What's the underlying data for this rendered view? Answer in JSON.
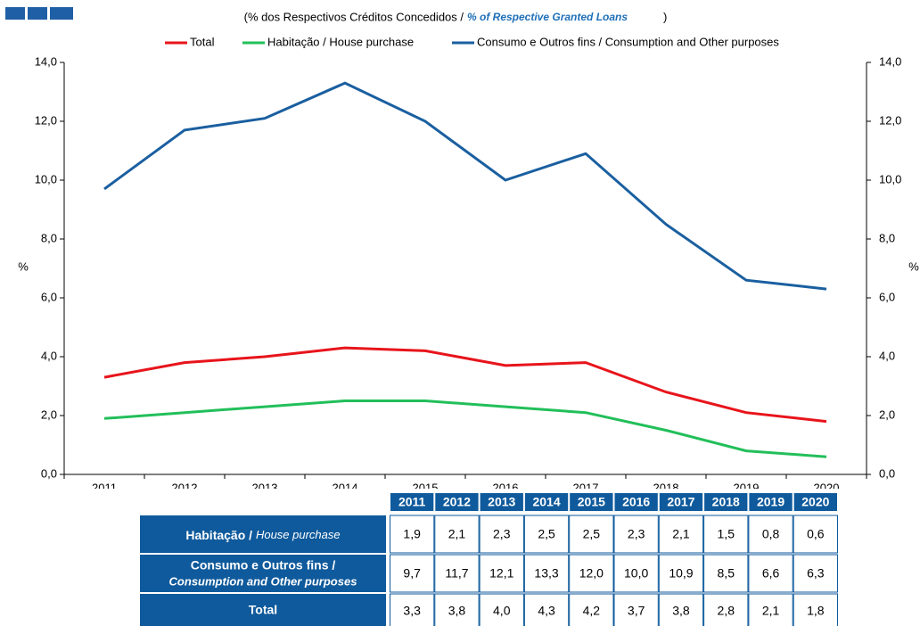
{
  "chart_data": {
    "type": "line",
    "subtitle": {
      "pt": "(% dos Respectivos Créditos Concedidos /",
      "en": "% of Respective Granted Loans",
      "close": ")"
    },
    "ylabel": "%",
    "categories": [
      "2011",
      "2012",
      "2013",
      "2014",
      "2015",
      "2016",
      "2017",
      "2018",
      "2019",
      "2020"
    ],
    "series": [
      {
        "name": "Total",
        "color": "#e8141b",
        "values": [
          3.3,
          3.8,
          4.0,
          4.3,
          4.2,
          3.7,
          3.8,
          2.8,
          2.1,
          1.8
        ],
        "value_labels": [
          "3,3",
          "3,8",
          "4,0",
          "4,3",
          "4,2",
          "3,7",
          "3,8",
          "2,8",
          "2,1",
          "1,8"
        ],
        "table_label": [
          "Total"
        ]
      },
      {
        "name": "Habitação / House purchase",
        "color": "#22bf5a",
        "values": [
          1.9,
          2.1,
          2.3,
          2.5,
          2.5,
          2.3,
          2.1,
          1.5,
          0.8,
          0.6
        ],
        "value_labels": [
          "1,9",
          "2,1",
          "2,3",
          "2,5",
          "2,5",
          "2,3",
          "2,1",
          "1,5",
          "0,8",
          "0,6"
        ],
        "table_label": [
          "Habitação /",
          "House purchase"
        ]
      },
      {
        "name": "Consumo e Outros fins / Consumption and Other purposes",
        "color": "#1a5fa0",
        "values": [
          9.7,
          11.7,
          12.1,
          13.3,
          12.0,
          10.0,
          10.9,
          8.5,
          6.6,
          6.3
        ],
        "value_labels": [
          "9,7",
          "11,7",
          "12,1",
          "13,3",
          "12,0",
          "10,0",
          "10,9",
          "8,5",
          "6,6",
          "6,3"
        ],
        "table_label": [
          "Consumo e Outros fins /",
          "Consumption and Other purposes"
        ]
      }
    ],
    "ylim": [
      0,
      14
    ],
    "yticks": [
      {
        "value": 0,
        "label": "0,0"
      },
      {
        "value": 2,
        "label": "2,0"
      },
      {
        "value": 4,
        "label": "4,0"
      },
      {
        "value": 6,
        "label": "6,0"
      },
      {
        "value": 8,
        "label": "8,0"
      },
      {
        "value": 10,
        "label": "10,0"
      },
      {
        "value": 12,
        "label": "12,0"
      },
      {
        "value": 14,
        "label": "14,0"
      }
    ],
    "table_order": [
      1,
      2,
      0
    ]
  }
}
